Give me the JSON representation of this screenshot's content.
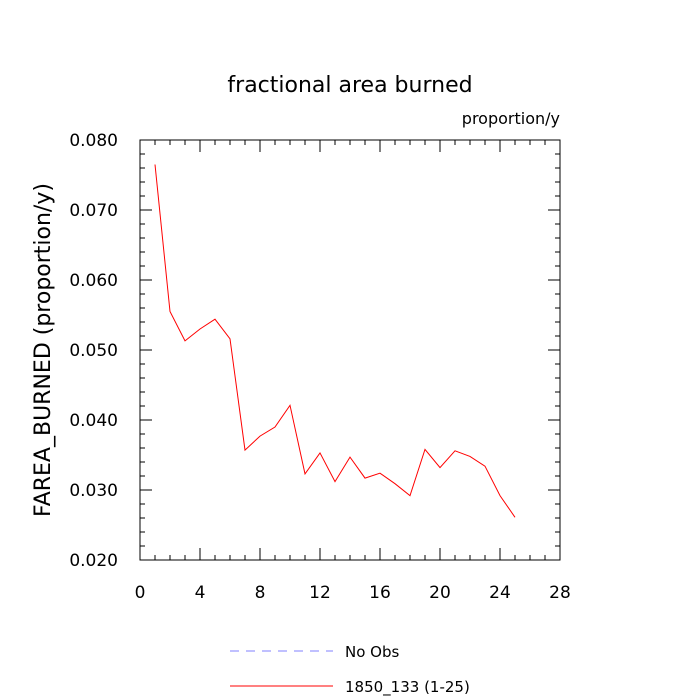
{
  "chart_data": {
    "type": "line",
    "title": "fractional area burned",
    "units_label": "proportion/y",
    "xlabel": "",
    "ylabel": "FAREA_BURNED  (proportion/y)",
    "xlim": [
      0,
      28
    ],
    "ylim": [
      0.02,
      0.08
    ],
    "x_ticks": [
      "0",
      "4",
      "8",
      "12",
      "16",
      "20",
      "24",
      "28"
    ],
    "y_ticks": [
      "0.020",
      "0.030",
      "0.040",
      "0.050",
      "0.060",
      "0.070",
      "0.080"
    ],
    "grid": false,
    "legend_position": "bottom-center",
    "series": [
      {
        "name": "No Obs",
        "color": "#8080ff",
        "dashed": true,
        "x": [],
        "y": []
      },
      {
        "name": "1850_133 (1-25)",
        "color": "#ff0000",
        "dashed": false,
        "x": [
          1,
          2,
          3,
          4,
          5,
          6,
          7,
          8,
          9,
          10,
          11,
          12,
          13,
          14,
          15,
          16,
          17,
          18,
          19,
          20,
          21,
          22,
          23,
          24,
          25
        ],
        "y": [
          0.0765,
          0.0555,
          0.0513,
          0.053,
          0.0544,
          0.0516,
          0.0357,
          0.0377,
          0.039,
          0.0421,
          0.0323,
          0.0353,
          0.0312,
          0.0347,
          0.0317,
          0.0324,
          0.0309,
          0.0292,
          0.0358,
          0.0332,
          0.0356,
          0.0348,
          0.0334,
          0.0292,
          0.0261
        ]
      }
    ]
  }
}
